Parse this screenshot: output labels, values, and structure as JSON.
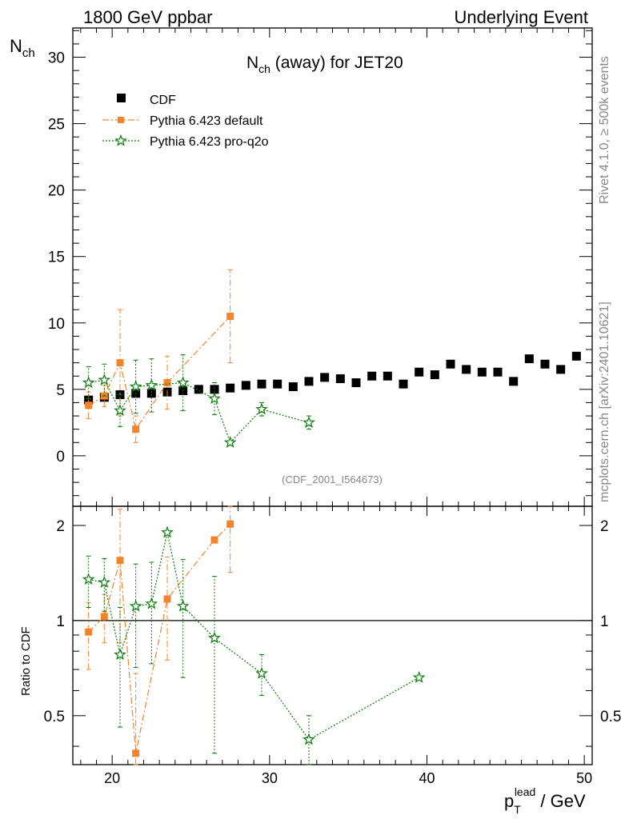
{
  "header": {
    "left": "1800 GeV ppbar",
    "right": "Underlying Event"
  },
  "side_text": {
    "rivet": "Rivet 4.1.0, ≥ 500k events",
    "mcplots": "mcplots.cern.ch [arXiv:2401.10621]"
  },
  "colors": {
    "cdf": "#000000",
    "pythia_default": "#f5832b",
    "pythia_q2o": "#0a7a0a"
  },
  "chart_data": [
    {
      "type": "scatter",
      "title_main": "N",
      "title_sub": "ch",
      "title_rest": " (away) for JET20",
      "ylabel_main": "N",
      "ylabel_sub": "ch",
      "xlim": [
        17.5,
        50.5
      ],
      "ylim": [
        -3.8,
        32.2
      ],
      "yticks": [
        "0",
        "5",
        "10",
        "15",
        "20",
        "25",
        "30"
      ],
      "watermark": "(CDF_2001_I564673)",
      "legend": [
        "CDF",
        "Pythia 6.423 default",
        "Pythia 6.423 pro-q2o"
      ],
      "series": [
        {
          "name": "CDF",
          "x": [
            18.5,
            19.5,
            20.5,
            21.5,
            22.5,
            23.5,
            24.5,
            25.5,
            26.5,
            27.5,
            28.5,
            29.5,
            30.5,
            31.5,
            32.5,
            33.5,
            34.5,
            35.5,
            36.5,
            37.5,
            38.5,
            39.5,
            40.5,
            41.5,
            42.5,
            43.5,
            44.5,
            45.5,
            46.5,
            47.5,
            48.5,
            49.5
          ],
          "y": [
            4.2,
            4.4,
            4.6,
            4.7,
            4.7,
            4.8,
            4.9,
            5.0,
            5.0,
            5.1,
            5.3,
            5.4,
            5.4,
            5.2,
            5.6,
            5.9,
            5.8,
            5.5,
            6.0,
            6.0,
            5.4,
            6.3,
            6.1,
            6.9,
            6.5,
            6.3,
            6.3,
            5.6,
            7.3,
            6.9,
            6.5,
            7.5
          ]
        },
        {
          "name": "Pythia 6.423 default",
          "x": [
            18.5,
            19.5,
            20.5,
            21.5,
            23.5,
            27.5
          ],
          "y": [
            3.8,
            4.5,
            7.0,
            2.0,
            5.5,
            10.5
          ],
          "err": [
            1.0,
            0.8,
            4.0,
            1.0,
            2.0,
            3.5
          ]
        },
        {
          "name": "Pythia 6.423 pro-q2o",
          "x": [
            18.5,
            19.5,
            20.5,
            21.5,
            22.5,
            24.5,
            26.5,
            27.5,
            29.5,
            32.5
          ],
          "y": [
            5.5,
            5.7,
            3.4,
            5.2,
            5.3,
            5.5,
            4.3,
            1.0,
            3.5,
            2.5
          ],
          "err": [
            1.2,
            1.2,
            1.2,
            2.0,
            2.0,
            2.1,
            1.2,
            0.0,
            0.5,
            0.5
          ]
        }
      ]
    },
    {
      "type": "scatter",
      "ylabel": "Ratio to CDF",
      "xlabel_main": "p",
      "xlabel_sub": "T",
      "xlabel_sup": "lead",
      "xlabel_rest": " / GeV",
      "xlim": [
        17.5,
        50.5
      ],
      "ylim": [
        0.35,
        2.3
      ],
      "xticks": [
        "20",
        "30",
        "40",
        "50"
      ],
      "yticks": [
        "0.5",
        "1",
        "2"
      ],
      "reference_line": 1,
      "series": [
        {
          "name": "Pythia 6.423 default",
          "x": [
            18.5,
            19.5,
            20.5,
            21.5,
            23.5,
            26.5,
            27.5
          ],
          "y": [
            0.92,
            1.03,
            1.55,
            0.38,
            1.17,
            1.8,
            2.02
          ],
          "err": [
            0.22,
            0.18,
            0.7,
            0.3,
            0.42,
            0.0,
            0.6
          ]
        },
        {
          "name": "Pythia 6.423 pro-q2o",
          "x": [
            18.5,
            19.5,
            20.5,
            21.5,
            22.5,
            23.5,
            24.5,
            26.5,
            29.5,
            32.5,
            39.5
          ],
          "y": [
            1.35,
            1.32,
            0.78,
            1.11,
            1.13,
            1.9,
            1.11,
            0.88,
            0.68,
            0.42,
            0.66
          ],
          "err": [
            0.25,
            0.25,
            0.32,
            0.4,
            0.4,
            0.0,
            0.45,
            0.5,
            0.1,
            0.08,
            0.0
          ]
        }
      ]
    }
  ]
}
